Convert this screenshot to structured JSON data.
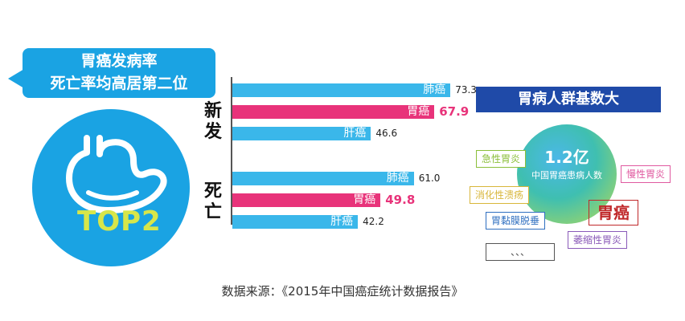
{
  "headline": {
    "line1": "胃癌发病率",
    "line2": "死亡率均高居第二位"
  },
  "badge": "TOP2",
  "chart_data": {
    "type": "bar",
    "orientation": "horizontal",
    "groups": [
      {
        "name": "新发",
        "bars": [
          {
            "label": "肺癌",
            "value": 73.3,
            "highlight": false
          },
          {
            "label": "胃癌",
            "value": 67.9,
            "highlight": true
          },
          {
            "label": "肝癌",
            "value": 46.6,
            "highlight": false
          }
        ]
      },
      {
        "name": "死亡",
        "bars": [
          {
            "label": "肺癌",
            "value": 61.0,
            "highlight": false
          },
          {
            "label": "胃癌",
            "value": 49.8,
            "highlight": true
          },
          {
            "label": "肝癌",
            "value": 42.2,
            "highlight": false
          }
        ]
      }
    ],
    "colors": {
      "normal": "#3ab7ea",
      "highlight": "#e8337a"
    }
  },
  "right": {
    "title": "胃病人群基数大",
    "circle_value": "1.2亿",
    "circle_caption": "中国胃癌患病人数",
    "tags": [
      {
        "text": "急性胃炎",
        "color": "#8bbf3a"
      },
      {
        "text": "慢性胃炎",
        "color": "#e05aa0"
      },
      {
        "text": "消化性溃疡",
        "color": "#d8b63a"
      },
      {
        "text": "胃黏膜脱垂",
        "color": "#2f6fc0"
      },
      {
        "text": "萎缩性胃炎",
        "color": "#8a5ab8"
      },
      {
        "text": "、、、",
        "color": "#555555"
      }
    ],
    "big_tag": "胃癌"
  },
  "source": "数据来源：《2015年中国癌症统计数据报告》"
}
